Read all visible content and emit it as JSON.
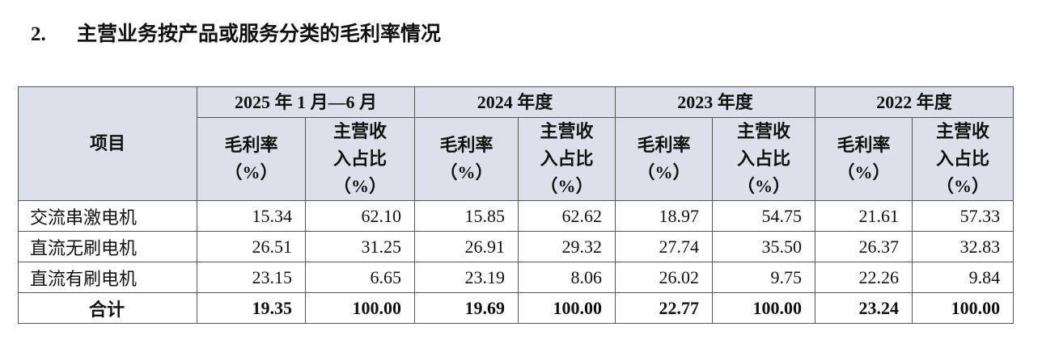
{
  "heading": {
    "number": "2.",
    "title": "主营业务按产品或服务分类的毛利率情况"
  },
  "table": {
    "item_header": "项目",
    "periods": [
      "2025 年 1 月—6 月",
      "2024 年度",
      "2023 年度",
      "2022 年度"
    ],
    "subheaders": [
      [
        "毛利率",
        "（%）"
      ],
      [
        "主营收",
        "入占比",
        "（%）"
      ]
    ],
    "rows": [
      [
        "交流串激电机",
        "15.34",
        "62.10",
        "15.85",
        "62.62",
        "18.97",
        "54.75",
        "21.61",
        "57.33"
      ],
      [
        "直流无刷电机",
        "26.51",
        "31.25",
        "26.91",
        "29.32",
        "27.74",
        "35.50",
        "26.37",
        "32.83"
      ],
      [
        "直流有刷电机",
        "23.15",
        "6.65",
        "23.19",
        "8.06",
        "26.02",
        "9.75",
        "22.26",
        "9.84"
      ]
    ],
    "total": [
      "合计",
      "19.35",
      "100.00",
      "19.69",
      "100.00",
      "22.77",
      "100.00",
      "23.24",
      "100.00"
    ]
  }
}
